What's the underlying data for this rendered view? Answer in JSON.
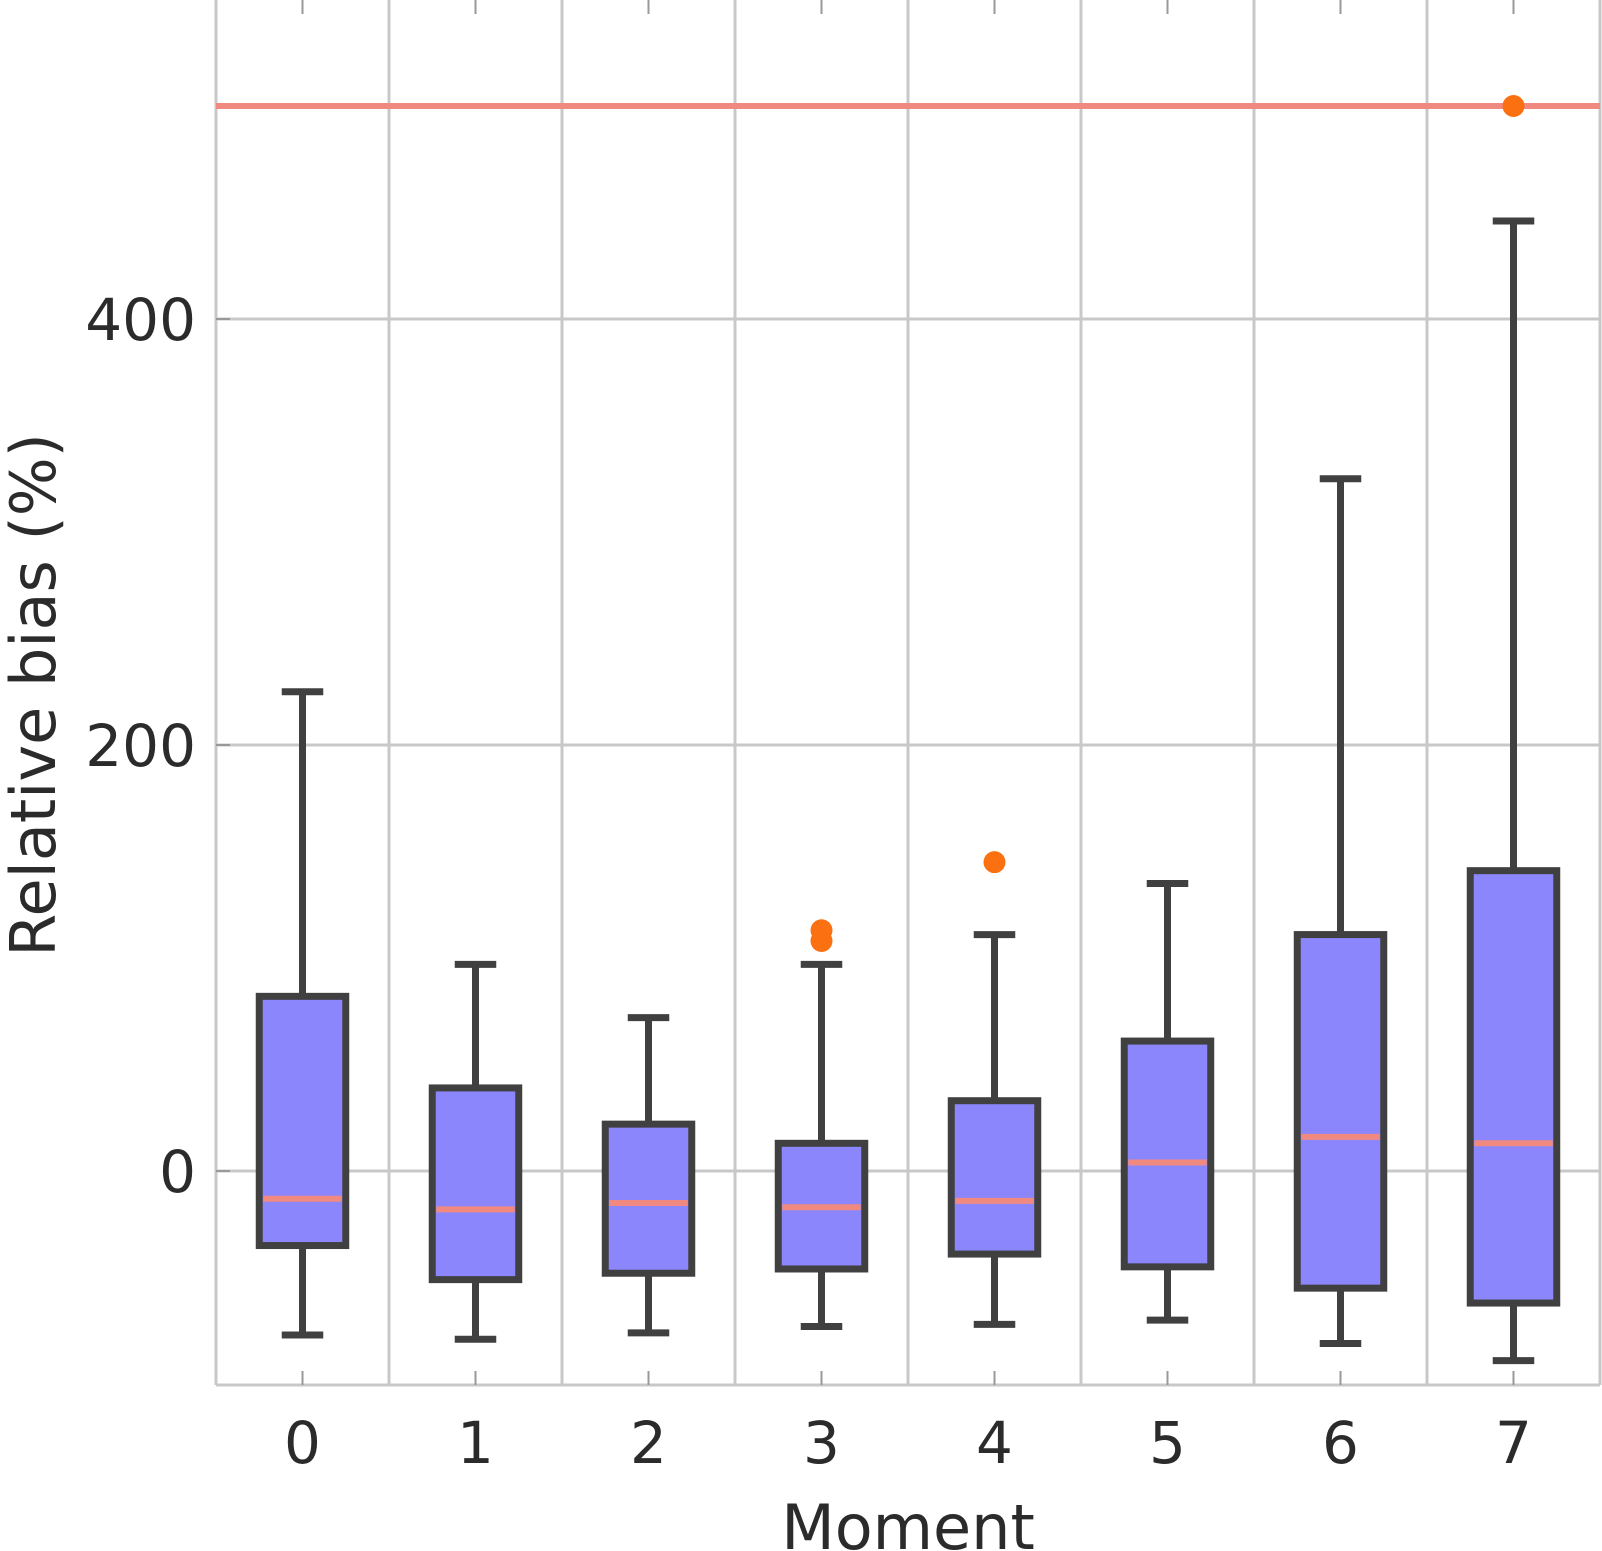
{
  "chart_data": {
    "type": "box",
    "xlabel": "Moment",
    "ylabel": "Relative bias (%)",
    "categories": [
      "0",
      "1",
      "2",
      "3",
      "4",
      "5",
      "6",
      "7"
    ],
    "yticks": [
      0,
      200,
      400
    ],
    "ylim": [
      -100,
      550
    ],
    "grid": true,
    "reference_line": {
      "y": 500,
      "color": "#f08a80"
    },
    "boxes": [
      {
        "category": "0",
        "whisker_low": -77,
        "q1": -35,
        "median": -13,
        "q3": 82,
        "whisker_high": 225,
        "outliers": []
      },
      {
        "category": "1",
        "whisker_low": -79,
        "q1": -51,
        "median": -18,
        "q3": 39,
        "whisker_high": 97,
        "outliers": []
      },
      {
        "category": "2",
        "whisker_low": -76,
        "q1": -48,
        "median": -15,
        "q3": 22,
        "whisker_high": 72,
        "outliers": []
      },
      {
        "category": "3",
        "whisker_low": -73,
        "q1": -46,
        "median": -17,
        "q3": 13,
        "whisker_high": 97,
        "outliers": [
          108,
          113
        ]
      },
      {
        "category": "4",
        "whisker_low": -72,
        "q1": -39,
        "median": -14,
        "q3": 33,
        "whisker_high": 111,
        "outliers": [
          145
        ]
      },
      {
        "category": "5",
        "whisker_low": -70,
        "q1": -45,
        "median": 4,
        "q3": 61,
        "whisker_high": 135,
        "outliers": []
      },
      {
        "category": "6",
        "whisker_low": -81,
        "q1": -55,
        "median": 16,
        "q3": 111,
        "whisker_high": 325,
        "outliers": []
      },
      {
        "category": "7",
        "whisker_low": -89,
        "q1": -62,
        "median": 13,
        "q3": 141,
        "whisker_high": 446,
        "outliers": [
          500
        ]
      }
    ],
    "colors": {
      "box_fill": "#8c86fc",
      "box_edge": "#404040",
      "median": "#f08a80",
      "outlier": "#fb7010",
      "grid": "#c8c8c8"
    }
  }
}
